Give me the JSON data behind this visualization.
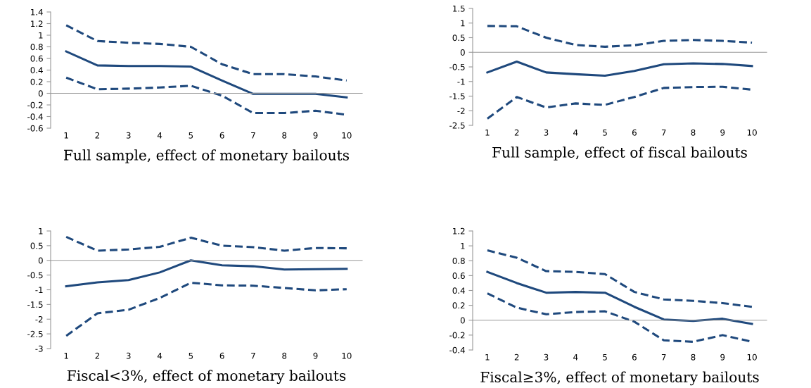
{
  "chart_data": [
    {
      "type": "line",
      "title": "Full sample, effect of monetary bailouts",
      "categories": [
        "1",
        "2",
        "3",
        "4",
        "5",
        "6",
        "7",
        "8",
        "9",
        "10"
      ],
      "ylim": [
        -0.6,
        1.4
      ],
      "yticks": [
        -0.6,
        -0.4,
        -0.2,
        0,
        0.2,
        0.4,
        0.6,
        0.8,
        1,
        1.2,
        1.4
      ],
      "series": [
        {
          "color": "#1f497d",
          "line_style": "dashed",
          "values": [
            1.17,
            0.9,
            0.87,
            0.85,
            0.8,
            0.5,
            0.33,
            0.33,
            0.29,
            0.22
          ]
        },
        {
          "color": "#1f497d",
          "line_style": "solid",
          "values": [
            0.72,
            0.48,
            0.47,
            0.47,
            0.46,
            0.22,
            -0.01,
            -0.01,
            -0.01,
            -0.07
          ]
        },
        {
          "color": "#1f497d",
          "line_style": "dashed",
          "values": [
            0.27,
            0.07,
            0.08,
            0.1,
            0.13,
            -0.04,
            -0.34,
            -0.34,
            -0.3,
            -0.37
          ]
        }
      ]
    },
    {
      "type": "line",
      "title": "Full sample, effect of fiscal bailouts",
      "categories": [
        "1",
        "2",
        "3",
        "4",
        "5",
        "6",
        "7",
        "8",
        "9",
        "10"
      ],
      "ylim": [
        -2.5,
        1.5
      ],
      "yticks": [
        -2.5,
        -2,
        -1.5,
        -1,
        -0.5,
        0,
        0.5,
        1,
        1.5
      ],
      "series": [
        {
          "color": "#1f497d",
          "line_style": "dashed",
          "values": [
            0.9,
            0.89,
            0.5,
            0.25,
            0.19,
            0.24,
            0.39,
            0.42,
            0.39,
            0.33
          ]
        },
        {
          "color": "#1f497d",
          "line_style": "solid",
          "values": [
            -0.69,
            -0.32,
            -0.69,
            -0.75,
            -0.8,
            -0.64,
            -0.41,
            -0.38,
            -0.4,
            -0.47
          ]
        },
        {
          "color": "#1f497d",
          "line_style": "dashed",
          "values": [
            -2.27,
            -1.53,
            -1.89,
            -1.75,
            -1.8,
            -1.53,
            -1.22,
            -1.19,
            -1.18,
            -1.28
          ]
        }
      ]
    },
    {
      "type": "line",
      "title": "Fiscal<3%, effect of monetary bailouts",
      "categories": [
        "1",
        "2",
        "3",
        "4",
        "5",
        "6",
        "7",
        "8",
        "9",
        "10"
      ],
      "ylim": [
        -3,
        1
      ],
      "yticks": [
        -3,
        -2.5,
        -2,
        -1.5,
        -1,
        -0.5,
        0,
        0.5,
        1
      ],
      "series": [
        {
          "color": "#1f497d",
          "line_style": "dashed",
          "values": [
            0.8,
            0.33,
            0.37,
            0.46,
            0.77,
            0.5,
            0.45,
            0.33,
            0.42,
            0.41
          ]
        },
        {
          "color": "#1f497d",
          "line_style": "solid",
          "values": [
            -0.88,
            -0.75,
            -0.67,
            -0.41,
            0.0,
            -0.17,
            -0.2,
            -0.31,
            -0.3,
            -0.29
          ]
        },
        {
          "color": "#1f497d",
          "line_style": "dashed",
          "values": [
            -2.57,
            -1.8,
            -1.68,
            -1.28,
            -0.76,
            -0.85,
            -0.86,
            -0.94,
            -1.02,
            -0.98
          ]
        }
      ]
    },
    {
      "type": "line",
      "title": "Fiscal≥3%, effect of monetary bailouts",
      "categories": [
        "1",
        "2",
        "3",
        "4",
        "5",
        "6",
        "7",
        "8",
        "9",
        "10"
      ],
      "ylim": [
        -0.4,
        1.2
      ],
      "yticks": [
        -0.4,
        -0.2,
        0,
        0.2,
        0.4,
        0.6,
        0.8,
        1,
        1.2
      ],
      "series": [
        {
          "color": "#1f497d",
          "line_style": "dashed",
          "values": [
            0.94,
            0.84,
            0.66,
            0.65,
            0.62,
            0.38,
            0.28,
            0.26,
            0.23,
            0.18
          ]
        },
        {
          "color": "#1f497d",
          "line_style": "solid",
          "values": [
            0.65,
            0.5,
            0.37,
            0.38,
            0.37,
            0.18,
            0.01,
            -0.01,
            0.02,
            -0.05
          ]
        },
        {
          "color": "#1f497d",
          "line_style": "dashed",
          "values": [
            0.36,
            0.17,
            0.08,
            0.11,
            0.12,
            -0.02,
            -0.27,
            -0.29,
            -0.2,
            -0.29
          ]
        }
      ]
    }
  ]
}
